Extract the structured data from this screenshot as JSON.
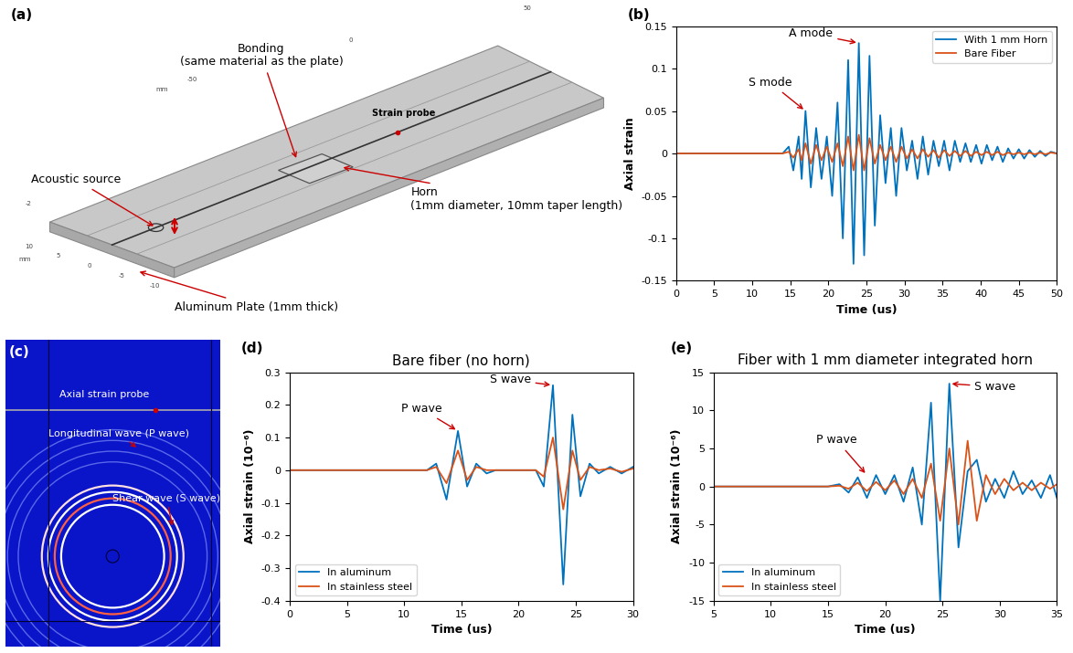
{
  "figure": {
    "a": {
      "panel_label": "(a)",
      "bonding": "Bonding\n(same material as the plate)",
      "strain_probe": "Strain probe",
      "horn": "Horn\n(1mm diameter, 10mm taper length)",
      "acoustic_source": "Acoustic source",
      "plate": "Aluminum Plate (1mm thick)",
      "axis_numbers": [
        "50",
        "0",
        "-50",
        "mm",
        "-2",
        "10",
        "5",
        "0",
        "-5",
        "-10",
        "mm"
      ]
    },
    "c": {
      "panel_label": "(c)",
      "probe": "Axial strain probe",
      "p_wave": "Longitudinal wave (P wave)",
      "s_wave": "Shear wave (S wave)"
    }
  },
  "chart_data": [
    {
      "panel_label": "(b)",
      "type": "line",
      "x_label": "Time (us)",
      "y_label": "Axial strain",
      "x": [
        0,
        14,
        14.8,
        15.4,
        16.1,
        16.5,
        17.0,
        17.7,
        18.4,
        19.1,
        19.8,
        20.5,
        21.2,
        21.9,
        22.6,
        23.3,
        24.0,
        24.7,
        25.4,
        26.1,
        26.8,
        27.5,
        28.2,
        28.9,
        29.6,
        30.3,
        31.0,
        31.7,
        32.4,
        33.1,
        33.8,
        34.5,
        35.2,
        35.9,
        36.6,
        37.3,
        38.0,
        38.7,
        39.4,
        40.1,
        40.8,
        41.5,
        42.2,
        42.9,
        43.6,
        44.3,
        45.0,
        45.7,
        46.4,
        47.1,
        47.8,
        48.5,
        49.2,
        50
      ],
      "series": [
        {
          "name": "With 1 mm Horn",
          "color": "#0072bd",
          "values": [
            0,
            0,
            0.008,
            -0.02,
            0.02,
            -0.03,
            0.05,
            -0.04,
            0.03,
            -0.03,
            0.02,
            -0.05,
            0.06,
            -0.1,
            0.11,
            -0.13,
            0.13,
            -0.12,
            0.115,
            -0.085,
            0.045,
            -0.035,
            0.03,
            -0.05,
            0.03,
            -0.02,
            0.015,
            -0.03,
            0.02,
            -0.025,
            0.015,
            -0.015,
            0.015,
            -0.02,
            0.015,
            -0.01,
            0.012,
            -0.01,
            0.01,
            -0.012,
            0.01,
            -0.008,
            0.008,
            -0.01,
            0.006,
            -0.006,
            0.005,
            -0.006,
            0.004,
            -0.004,
            0.003,
            -0.003,
            0.002,
            0
          ]
        },
        {
          "name": "Bare Fiber",
          "color": "#d95319",
          "values": [
            0,
            0,
            0.002,
            -0.005,
            0.005,
            -0.008,
            0.012,
            -0.012,
            0.01,
            -0.008,
            0.008,
            -0.01,
            0.012,
            -0.015,
            0.02,
            -0.02,
            0.022,
            -0.02,
            0.018,
            -0.012,
            0.01,
            -0.008,
            0.008,
            -0.01,
            0.008,
            -0.006,
            0.005,
            -0.006,
            0.005,
            -0.004,
            0.004,
            -0.005,
            0.004,
            -0.003,
            0.003,
            -0.003,
            0.003,
            -0.003,
            0.002,
            -0.002,
            0.002,
            -0.002,
            0.002,
            -0.002,
            0.001,
            -0.001,
            0.001,
            -0.001,
            0.001,
            -0.001,
            0.001,
            -0.001,
            0.001,
            0
          ]
        }
      ],
      "xlim": [
        0,
        50
      ],
      "xticks": [
        0,
        5,
        10,
        15,
        20,
        25,
        30,
        35,
        40,
        45,
        50
      ],
      "ylim": [
        -0.15,
        0.15
      ],
      "yticks": [
        -0.15,
        -0.1,
        -0.05,
        0,
        0.05,
        0.1,
        0.15
      ],
      "legend": "upper right",
      "annotations": [
        {
          "text": "A mode",
          "x": 24.0,
          "y": 0.13
        },
        {
          "text": "S mode",
          "x": 17.0,
          "y": 0.05
        }
      ]
    },
    {
      "panel_label": "(d)",
      "type": "line",
      "title": "Bare fiber (no horn)",
      "x_label": "Time (us)",
      "y_label": "Axial strain (10⁻⁶)",
      "x": [
        0,
        12,
        12.8,
        13.7,
        14.7,
        15.5,
        16.3,
        17.2,
        18,
        21.5,
        22.2,
        23.0,
        23.9,
        24.7,
        25.4,
        26.2,
        27,
        28,
        29,
        30
      ],
      "series": [
        {
          "name": "In aluminum",
          "color": "#0072bd",
          "values": [
            0,
            0,
            0.02,
            -0.09,
            0.12,
            -0.05,
            0.02,
            -0.01,
            0,
            0,
            -0.05,
            0.26,
            -0.35,
            0.17,
            -0.08,
            0.02,
            -0.01,
            0.01,
            -0.01,
            0.01
          ]
        },
        {
          "name": "In stainless steel",
          "color": "#d95319",
          "values": [
            0,
            0,
            0.01,
            -0.04,
            0.06,
            -0.03,
            0.01,
            0,
            0,
            0,
            -0.02,
            0.1,
            -0.12,
            0.06,
            -0.03,
            0.01,
            0,
            0.005,
            -0.005,
            0.005
          ]
        }
      ],
      "xlim": [
        0,
        30
      ],
      "xticks": [
        0,
        5,
        10,
        15,
        20,
        25,
        30
      ],
      "ylim": [
        -0.4,
        0.3
      ],
      "yticks": [
        -0.4,
        -0.3,
        -0.2,
        -0.1,
        0,
        0.1,
        0.2,
        0.3
      ],
      "legend": "lower left",
      "annotations": [
        {
          "text": "P wave",
          "x": 14.7,
          "y": 0.12
        },
        {
          "text": "S wave",
          "x": 23.0,
          "y": 0.26
        }
      ]
    },
    {
      "panel_label": "(e)",
      "type": "line",
      "title": "Fiber with 1 mm diameter integrated horn",
      "x_label": "Time (us)",
      "y_label": "Axial strain (10⁻⁶)",
      "x": [
        5,
        15,
        16,
        16.8,
        17.6,
        18.4,
        19.2,
        20,
        20.8,
        21.6,
        22.4,
        23.2,
        24,
        24.8,
        25.6,
        26.4,
        27.2,
        28,
        28.8,
        29.6,
        30.4,
        31.2,
        32,
        32.8,
        33.6,
        34.4,
        35
      ],
      "series": [
        {
          "name": "In aluminum",
          "color": "#0072bd",
          "values": [
            0,
            0,
            0.3,
            -0.8,
            1.2,
            -1.5,
            1.5,
            -1,
            1.5,
            -2,
            2.5,
            -5,
            11,
            -15,
            13.5,
            -8,
            2,
            3.5,
            -2,
            1,
            -1.5,
            2,
            -1,
            0.8,
            -1.5,
            1.5,
            -1.5
          ]
        },
        {
          "name": "In stainless steel",
          "color": "#d95319",
          "values": [
            0,
            0,
            0.1,
            -0.3,
            0.5,
            -0.6,
            0.6,
            -0.5,
            0.8,
            -1,
            1,
            -1.5,
            3,
            -4.5,
            5,
            -5,
            6,
            -4.5,
            1.5,
            -1,
            1,
            -0.5,
            0.5,
            -0.5,
            0.5,
            -0.3,
            0.3
          ]
        }
      ],
      "xlim": [
        5,
        35
      ],
      "xticks": [
        5,
        10,
        15,
        20,
        25,
        30,
        35
      ],
      "ylim": [
        -15,
        15
      ],
      "yticks": [
        -15,
        -10,
        -5,
        0,
        5,
        10,
        15
      ],
      "legend": "lower left",
      "annotations": [
        {
          "text": "P wave",
          "x": 18.4,
          "y": 1.5
        },
        {
          "text": "S wave",
          "x": 25.6,
          "y": 13.5
        }
      ]
    }
  ]
}
